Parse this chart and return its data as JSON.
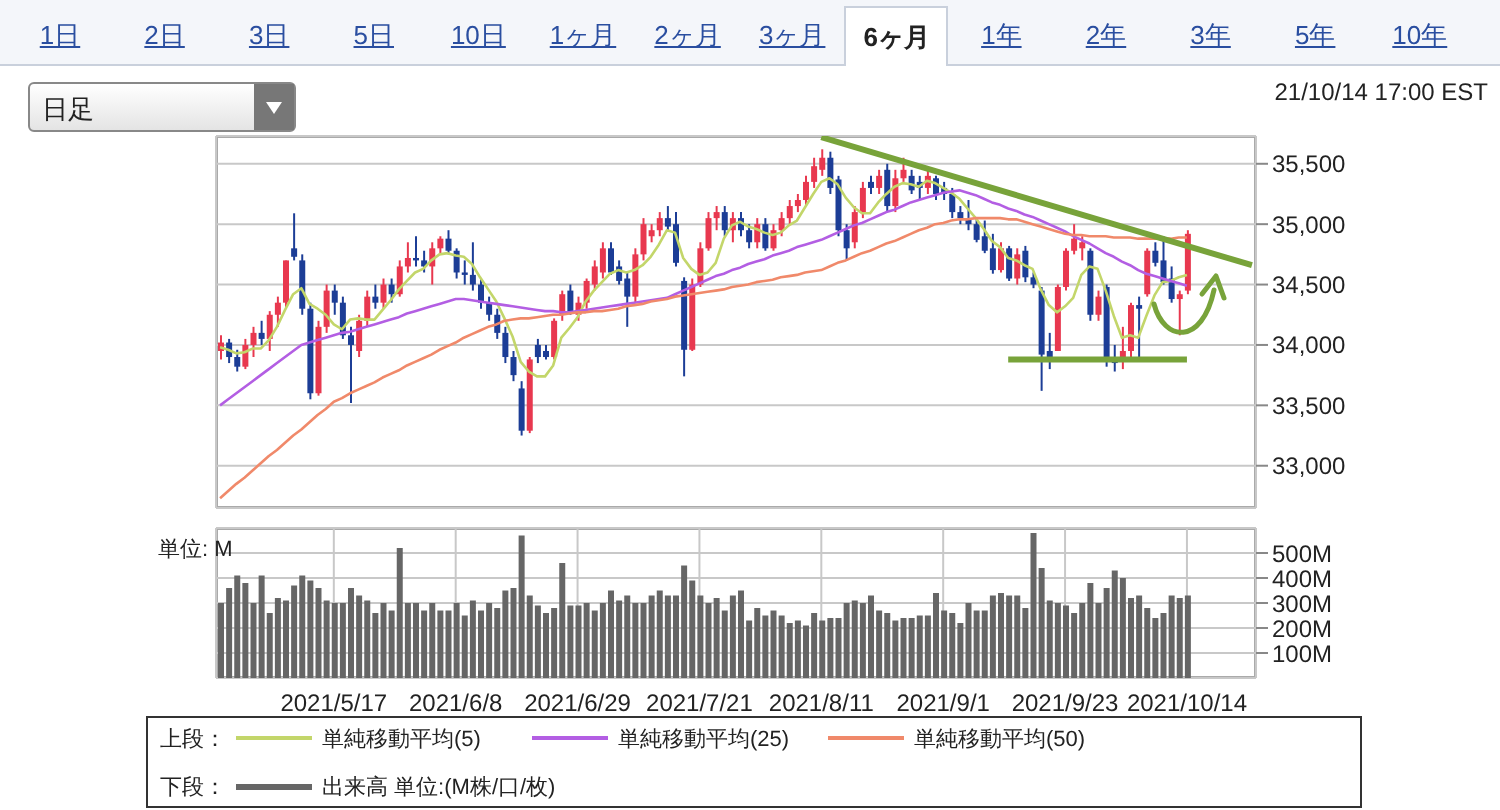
{
  "chart_data": [
    {
      "type": "other",
      "annotations": [
        "1日",
        "2日",
        "3日",
        "5日",
        "10日",
        "1ヶ月",
        "2ヶ月",
        "3ヶ月",
        "6ヶ月",
        "1年",
        "2年",
        "3年",
        "5年",
        "10年",
        "日足",
        "21/10/14 17:00 EST"
      ]
    },
    {
      "type": "candlestick",
      "legend_title": "上段：",
      "legend": "bottom",
      "grid": true,
      "tick_labels": "y",
      "categories": [
        null,
        null,
        null,
        null,
        null,
        null,
        null,
        null,
        null,
        null,
        null,
        null,
        null,
        null,
        "2021/5/17",
        null,
        null,
        null,
        null,
        null,
        null,
        null,
        null,
        null,
        null,
        null,
        null,
        null,
        null,
        "2021/6/8",
        null,
        null,
        null,
        null,
        null,
        null,
        null,
        null,
        null,
        null,
        null,
        null,
        null,
        null,
        "2021/6/29",
        null,
        null,
        null,
        null,
        null,
        null,
        null,
        null,
        null,
        null,
        null,
        null,
        null,
        null,
        "2021/7/21",
        null,
        null,
        null,
        null,
        null,
        null,
        null,
        null,
        null,
        null,
        null,
        null,
        null,
        null,
        "2021/8/11",
        null,
        null,
        null,
        null,
        null,
        null,
        null,
        null,
        null,
        null,
        null,
        null,
        null,
        null,
        "2021/9/1",
        null,
        null,
        null,
        null,
        null,
        null,
        null,
        null,
        null,
        null,
        null,
        null,
        null,
        null,
        "2021/9/23",
        null,
        null,
        null,
        null,
        null,
        null,
        null,
        null,
        null,
        null,
        null,
        null,
        null,
        null,
        "2021/10/14",
        null,
        null,
        null,
        null,
        null,
        null,
        null,
        null
      ],
      "ylim": [
        32650,
        35730
      ],
      "yticks": [
        {
          "value": 33000,
          "label": "33,000"
        },
        {
          "value": 33500,
          "label": "33,500"
        },
        {
          "value": 34000,
          "label": "34,000"
        },
        {
          "value": 34500,
          "label": "34,500"
        },
        {
          "value": 35000,
          "label": "35,000"
        },
        {
          "value": 35500,
          "label": "35,500"
        }
      ],
      "ohlc": [
        [
          33950,
          34080,
          33880,
          34020
        ],
        [
          34020,
          34050,
          33850,
          33900
        ],
        [
          33900,
          33960,
          33780,
          33820
        ],
        [
          33820,
          34050,
          33800,
          34000
        ],
        [
          34000,
          34150,
          33900,
          34100
        ],
        [
          34100,
          34200,
          34000,
          34050
        ],
        [
          34050,
          34280,
          33950,
          34250
        ],
        [
          34250,
          34400,
          34150,
          34350
        ],
        [
          34350,
          34700,
          34300,
          34700
        ],
        [
          34800,
          35090,
          34700,
          34730
        ],
        [
          34700,
          34750,
          34250,
          34300
        ],
        [
          34300,
          34350,
          33550,
          33600
        ],
        [
          33600,
          34200,
          33580,
          34150
        ],
        [
          34150,
          34500,
          34100,
          34450
        ],
        [
          34450,
          34500,
          34250,
          34350
        ],
        [
          34350,
          34400,
          34050,
          34080
        ],
        [
          34080,
          34150,
          33520,
          34000
        ],
        [
          33950,
          34250,
          33900,
          34200
        ],
        [
          34200,
          34450,
          34150,
          34400
        ],
        [
          34400,
          34500,
          34300,
          34350
        ],
        [
          34350,
          34550,
          34300,
          34500
        ],
        [
          34500,
          34550,
          34350,
          34420
        ],
        [
          34420,
          34700,
          34400,
          34650
        ],
        [
          34650,
          34850,
          34600,
          34720
        ],
        [
          34720,
          34900,
          34650,
          34700
        ],
        [
          34700,
          34780,
          34600,
          34650
        ],
        [
          34650,
          34850,
          34500,
          34800
        ],
        [
          34800,
          34900,
          34750,
          34880
        ],
        [
          34880,
          34950,
          34750,
          34780
        ],
        [
          34780,
          34800,
          34550,
          34600
        ],
        [
          34600,
          34700,
          34500,
          34580
        ],
        [
          34580,
          34850,
          34450,
          34500
        ],
        [
          34500,
          34550,
          34300,
          34350
        ],
        [
          34350,
          34400,
          34200,
          34250
        ],
        [
          34250,
          34300,
          34050,
          34100
        ],
        [
          34100,
          34150,
          33850,
          33900
        ],
        [
          33900,
          33950,
          33700,
          33750
        ],
        [
          33640,
          33700,
          33250,
          33290
        ],
        [
          33290,
          33900,
          33270,
          33880
        ],
        [
          34000,
          34050,
          33850,
          33900
        ],
        [
          33950,
          34000,
          33880,
          33900
        ],
        [
          33900,
          34220,
          33880,
          34200
        ],
        [
          34250,
          34450,
          34200,
          34420
        ],
        [
          34450,
          34500,
          34250,
          34280
        ],
        [
          34250,
          34400,
          34200,
          34350
        ],
        [
          34350,
          34550,
          34300,
          34530
        ],
        [
          34500,
          34700,
          34450,
          34650
        ],
        [
          34600,
          34850,
          34550,
          34800
        ],
        [
          34800,
          34850,
          34580,
          34600
        ],
        [
          34650,
          34700,
          34500,
          34530
        ],
        [
          34550,
          34600,
          34150,
          34400
        ],
        [
          34400,
          34800,
          34350,
          34750
        ],
        [
          34750,
          35050,
          34700,
          35000
        ],
        [
          34900,
          35000,
          34850,
          34950
        ],
        [
          34950,
          35100,
          34900,
          35050
        ],
        [
          35050,
          35150,
          34950,
          34980
        ],
        [
          35000,
          35100,
          34650,
          34680
        ],
        [
          34530,
          34560,
          33740,
          33960
        ],
        [
          33960,
          34550,
          33950,
          34500
        ],
        [
          34500,
          34850,
          34480,
          34800
        ],
        [
          34800,
          35100,
          34780,
          35050
        ],
        [
          35050,
          35150,
          34950,
          35100
        ],
        [
          35100,
          35150,
          34900,
          34950
        ],
        [
          34950,
          35100,
          34850,
          35050
        ],
        [
          35050,
          35100,
          34900,
          34950
        ],
        [
          34950,
          35000,
          34800,
          34850
        ],
        [
          34850,
          35050,
          34800,
          35000
        ],
        [
          35000,
          35050,
          34780,
          34800
        ],
        [
          34800,
          35000,
          34780,
          34950
        ],
        [
          34950,
          35100,
          34900,
          35050
        ],
        [
          35050,
          35200,
          35000,
          35150
        ],
        [
          35150,
          35250,
          35100,
          35200
        ],
        [
          35200,
          35400,
          35150,
          35350
        ],
        [
          35350,
          35550,
          35300,
          35480
        ],
        [
          35450,
          35620,
          35400,
          35550
        ],
        [
          35550,
          35600,
          35250,
          35300
        ],
        [
          35370,
          35400,
          34900,
          34950
        ],
        [
          34950,
          35000,
          34700,
          34800
        ],
        [
          34850,
          35150,
          34800,
          35100
        ],
        [
          35100,
          35350,
          35050,
          35300
        ],
        [
          35350,
          35400,
          35250,
          35300
        ],
        [
          35300,
          35450,
          35250,
          35400
        ],
        [
          35450,
          35500,
          35100,
          35150
        ],
        [
          35150,
          35450,
          35100,
          35380
        ],
        [
          35380,
          35550,
          35350,
          35450
        ],
        [
          35400,
          35450,
          35250,
          35280
        ],
        [
          35350,
          35400,
          35200,
          35300
        ],
        [
          35300,
          35450,
          35250,
          35400
        ],
        [
          35380,
          35400,
          35200,
          35250
        ],
        [
          35300,
          35350,
          35200,
          35250
        ],
        [
          35250,
          35300,
          35050,
          35100
        ],
        [
          35100,
          35150,
          35000,
          35050
        ],
        [
          35050,
          35200,
          34950,
          35000
        ],
        [
          35000,
          35050,
          34850,
          34870
        ],
        [
          34900,
          35030,
          34760,
          34780
        ],
        [
          34800,
          34920,
          34590,
          34620
        ],
        [
          34620,
          34850,
          34600,
          34800
        ],
        [
          34800,
          34820,
          34530,
          34550
        ],
        [
          34550,
          34800,
          34500,
          34750
        ],
        [
          34780,
          34820,
          34520,
          34560
        ],
        [
          34560,
          34600,
          34470,
          34500
        ],
        [
          34450,
          34480,
          33620,
          33920
        ],
        [
          33950,
          34100,
          33800,
          33900
        ],
        [
          33950,
          34500,
          33950,
          34480
        ],
        [
          34480,
          34800,
          34450,
          34780
        ],
        [
          34780,
          35000,
          34750,
          34880
        ],
        [
          34800,
          34900,
          34700,
          34850
        ],
        [
          34780,
          34800,
          34200,
          34250
        ],
        [
          34250,
          34450,
          34200,
          34400
        ],
        [
          34480,
          34500,
          33820,
          33870
        ],
        [
          33900,
          34000,
          33780,
          33850
        ],
        [
          33900,
          34150,
          33800,
          33950
        ],
        [
          33950,
          34350,
          33900,
          34330
        ],
        [
          34330,
          34400,
          33870,
          34300
        ],
        [
          34420,
          34800,
          34400,
          34780
        ],
        [
          34780,
          34850,
          34650,
          34680
        ],
        [
          34700,
          34900,
          34500,
          34520
        ],
        [
          34550,
          34650,
          34350,
          34380
        ],
        [
          34380,
          34450,
          34080,
          34420
        ],
        [
          34450,
          34950,
          34420,
          34920
        ],
        null,
        null,
        null,
        null,
        null,
        null,
        null,
        null
      ],
      "series": [
        {
          "type": "line",
          "name": "単純移動平均(5)",
          "color": "#c3d66a",
          "values": [
            33980,
            33960,
            33930,
            33940,
            33970,
            33970,
            34040,
            34150,
            34290,
            34420,
            34470,
            34340,
            34300,
            34250,
            34170,
            34130,
            34210,
            34220,
            34210,
            34210,
            34290,
            34370,
            34460,
            34530,
            34600,
            34630,
            34700,
            34750,
            34760,
            34740,
            34730,
            34670,
            34560,
            34460,
            34360,
            34220,
            34070,
            33860,
            33780,
            33740,
            33740,
            33830,
            34060,
            34140,
            34230,
            34360,
            34450,
            34520,
            34590,
            34620,
            34600,
            34620,
            34660,
            34730,
            34830,
            34950,
            34930,
            34720,
            34630,
            34580,
            34600,
            34680,
            34880,
            34990,
            35020,
            34980,
            34960,
            34930,
            34910,
            34930,
            34990,
            35030,
            35140,
            35250,
            35350,
            35380,
            35330,
            35220,
            35140,
            35090,
            35090,
            35180,
            35250,
            35310,
            35340,
            35330,
            35310,
            35360,
            35340,
            35300,
            35260,
            35210,
            35130,
            35050,
            34960,
            34860,
            34810,
            34720,
            34700,
            34660,
            34630,
            34460,
            34330,
            34270,
            34320,
            34390,
            34580,
            34650,
            34630,
            34450,
            34240,
            34060,
            34080,
            34060,
            34240,
            34410,
            34520,
            34530,
            34560,
            34580,
            null,
            null,
            null,
            null,
            null,
            null,
            null,
            null
          ]
        },
        {
          "type": "line",
          "name": "単純移動平均(25)",
          "color": "#b35ee3",
          "values": [
            33500,
            33550,
            33600,
            33650,
            33700,
            33750,
            33800,
            33850,
            33900,
            33950,
            34000,
            34020,
            34040,
            34060,
            34080,
            34100,
            34110,
            34130,
            34150,
            34170,
            34190,
            34210,
            34230,
            34260,
            34280,
            34300,
            34320,
            34340,
            34360,
            34380,
            34380,
            34370,
            34360,
            34350,
            34340,
            34330,
            34320,
            34310,
            34300,
            34290,
            34280,
            34280,
            34270,
            34270,
            34280,
            34290,
            34300,
            34310,
            34320,
            34330,
            34340,
            34350,
            34360,
            34370,
            34380,
            34390,
            34420,
            34450,
            34480,
            34510,
            34540,
            34570,
            34590,
            34620,
            34640,
            34670,
            34690,
            34710,
            34740,
            34760,
            34780,
            34810,
            34830,
            34850,
            34870,
            34900,
            34930,
            34960,
            34990,
            35010,
            35040,
            35070,
            35100,
            35120,
            35150,
            35180,
            35200,
            35220,
            35240,
            35260,
            35270,
            35280,
            35260,
            35240,
            35210,
            35180,
            35160,
            35130,
            35110,
            35080,
            35060,
            35030,
            35000,
            34970,
            34940,
            34900,
            34870,
            34840,
            34800,
            34760,
            34730,
            34690,
            34660,
            34620,
            34590,
            34570,
            34550,
            34530,
            34510,
            34490,
            null,
            null,
            null,
            null,
            null,
            null,
            null,
            null
          ]
        },
        {
          "type": "line",
          "name": "単純移動平均(50)",
          "color": "#f0896a",
          "values": [
            32730,
            32790,
            32850,
            32900,
            32960,
            33020,
            33080,
            33130,
            33190,
            33250,
            33300,
            33360,
            33420,
            33470,
            33530,
            33560,
            33600,
            33630,
            33660,
            33690,
            33730,
            33760,
            33790,
            33830,
            33860,
            33890,
            33920,
            33960,
            33990,
            34020,
            34060,
            34090,
            34120,
            34150,
            34170,
            34200,
            34210,
            34220,
            34220,
            34230,
            34240,
            34250,
            34250,
            34260,
            34270,
            34270,
            34280,
            34280,
            34290,
            34300,
            34320,
            34330,
            34340,
            34360,
            34370,
            34380,
            34400,
            34410,
            34420,
            34430,
            34440,
            34450,
            34460,
            34480,
            34490,
            34500,
            34520,
            34530,
            34540,
            34560,
            34570,
            34580,
            34600,
            34610,
            34620,
            34650,
            34680,
            34700,
            34730,
            34760,
            34780,
            34810,
            34840,
            34860,
            34890,
            34920,
            34950,
            34970,
            35000,
            35010,
            35030,
            35040,
            35040,
            35050,
            35050,
            35050,
            35050,
            35040,
            35040,
            35020,
            35000,
            34980,
            34960,
            34940,
            34920,
            34910,
            34910,
            34900,
            34900,
            34900,
            34890,
            34890,
            34890,
            34880,
            34880,
            34880,
            34880,
            34880,
            34890,
            34890,
            null,
            null,
            null,
            null,
            null,
            null,
            null,
            null
          ]
        },
        {
          "type": "line",
          "color": "#78a33a",
          "values": [
            null,
            null,
            null,
            null,
            null,
            null,
            null,
            null,
            null,
            null,
            null,
            null,
            null,
            null,
            null,
            null,
            null,
            null,
            null,
            null,
            null,
            null,
            null,
            null,
            null,
            null,
            null,
            null,
            null,
            null,
            null,
            null,
            null,
            null,
            null,
            null,
            null,
            null,
            null,
            null,
            null,
            null,
            null,
            null,
            null,
            null,
            null,
            null,
            null,
            null,
            null,
            null,
            null,
            null,
            null,
            null,
            null,
            null,
            null,
            null,
            null,
            null,
            null,
            null,
            null,
            null,
            null,
            null,
            null,
            null,
            null,
            null,
            null,
            null,
            35720,
            null,
            null,
            null,
            null,
            null,
            null,
            null,
            null,
            null,
            null,
            null,
            null,
            null,
            null,
            null,
            null,
            null,
            null,
            null,
            null,
            null,
            null,
            null,
            null,
            null,
            null,
            null,
            null,
            null,
            null,
            null,
            null,
            null,
            null,
            null,
            null,
            null,
            null,
            null,
            null,
            null,
            null,
            null,
            null,
            null,
            null,
            null,
            null,
            null,
            null,
            null,
            null,
            34660
          ]
        },
        {
          "type": "line",
          "color": "#78a33a",
          "values": [
            null,
            null,
            null,
            null,
            null,
            null,
            null,
            null,
            null,
            null,
            null,
            null,
            null,
            null,
            null,
            null,
            null,
            null,
            null,
            null,
            null,
            null,
            null,
            null,
            null,
            null,
            null,
            null,
            null,
            null,
            null,
            null,
            null,
            null,
            null,
            null,
            null,
            null,
            null,
            null,
            null,
            null,
            null,
            null,
            null,
            null,
            null,
            null,
            null,
            null,
            null,
            null,
            null,
            null,
            null,
            null,
            null,
            null,
            null,
            null,
            null,
            null,
            null,
            null,
            null,
            null,
            null,
            null,
            null,
            null,
            null,
            null,
            null,
            null,
            null,
            null,
            null,
            null,
            null,
            null,
            null,
            null,
            null,
            null,
            null,
            null,
            null,
            null,
            null,
            null,
            null,
            null,
            null,
            null,
            null,
            null,
            null,
            33880,
            null,
            null,
            null,
            null,
            null,
            null,
            null,
            null,
            null,
            null,
            null,
            null,
            null,
            null,
            null,
            null,
            null,
            null,
            null,
            null,
            null,
            33880,
            null,
            null,
            null,
            null,
            null,
            null,
            null,
            null
          ]
        }
      ]
    },
    {
      "type": "bar",
      "legend_title": "下段：",
      "legend": "bottom",
      "grid": true,
      "ylabel": "単位: M",
      "categories": [
        null,
        null,
        null,
        null,
        null,
        null,
        null,
        null,
        null,
        null,
        null,
        null,
        null,
        null,
        "2021/5/17",
        null,
        null,
        null,
        null,
        null,
        null,
        null,
        null,
        null,
        null,
        null,
        null,
        null,
        null,
        "2021/6/8",
        null,
        null,
        null,
        null,
        null,
        null,
        null,
        null,
        null,
        null,
        null,
        null,
        null,
        null,
        "2021/6/29",
        null,
        null,
        null,
        null,
        null,
        null,
        null,
        null,
        null,
        null,
        null,
        null,
        null,
        null,
        "2021/7/21",
        null,
        null,
        null,
        null,
        null,
        null,
        null,
        null,
        null,
        null,
        null,
        null,
        null,
        null,
        "2021/8/11",
        null,
        null,
        null,
        null,
        null,
        null,
        null,
        null,
        null,
        null,
        null,
        null,
        null,
        null,
        "2021/9/1",
        null,
        null,
        null,
        null,
        null,
        null,
        null,
        null,
        null,
        null,
        null,
        null,
        null,
        null,
        "2021/9/23",
        null,
        null,
        null,
        null,
        null,
        null,
        null,
        null,
        null,
        null,
        null,
        null,
        null,
        null,
        "2021/10/14",
        null,
        null,
        null,
        null,
        null,
        null,
        null,
        null
      ],
      "ylim": [
        0,
        600
      ],
      "yticks": [
        {
          "value": 100,
          "label": "100M"
        },
        {
          "value": 200,
          "label": "200M"
        },
        {
          "value": 300,
          "label": "300M"
        },
        {
          "value": 400,
          "label": "400M"
        },
        {
          "value": 500,
          "label": "500M"
        }
      ],
      "series": [
        {
          "name": "出来高 単位:(M株/口/枚)",
          "color": "#666666",
          "values": [
            300,
            360,
            410,
            380,
            300,
            410,
            260,
            320,
            310,
            370,
            410,
            390,
            360,
            310,
            300,
            300,
            360,
            330,
            310,
            260,
            300,
            270,
            520,
            300,
            300,
            270,
            300,
            270,
            270,
            300,
            250,
            310,
            270,
            300,
            280,
            350,
            360,
            570,
            330,
            290,
            260,
            280,
            460,
            290,
            290,
            300,
            270,
            300,
            350,
            310,
            330,
            300,
            300,
            330,
            350,
            330,
            330,
            450,
            390,
            330,
            300,
            320,
            270,
            330,
            350,
            230,
            280,
            250,
            270,
            250,
            220,
            230,
            210,
            260,
            230,
            240,
            240,
            300,
            310,
            300,
            330,
            270,
            260,
            230,
            240,
            240,
            250,
            250,
            340,
            270,
            260,
            220,
            300,
            270,
            270,
            330,
            340,
            330,
            330,
            280,
            580,
            440,
            310,
            300,
            290,
            260,
            300,
            380,
            300,
            360,
            430,
            400,
            320,
            330,
            280,
            240,
            260,
            330,
            320,
            330,
            null,
            null,
            null,
            null,
            null,
            null,
            null,
            null
          ]
        }
      ]
    }
  ]
}
